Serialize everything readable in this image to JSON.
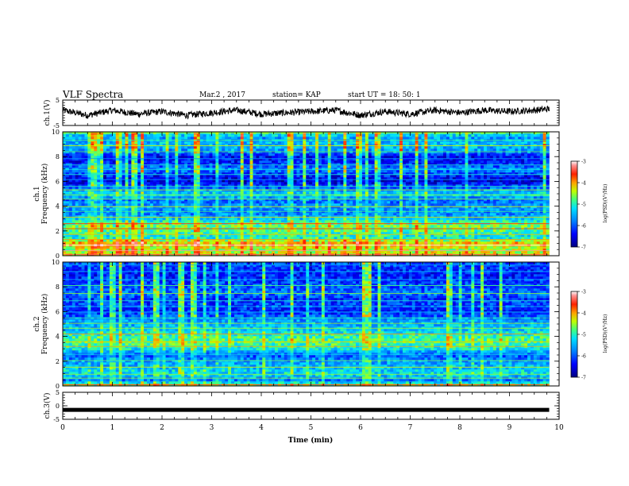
{
  "header": {
    "title": "VLF Spectra",
    "date": "Mar.2  , 2017",
    "station": "station= KAP",
    "start": "start  UT =   18: 50: 1"
  },
  "colors": {
    "colormap": [
      "#000080",
      "#0000ff",
      "#0080ff",
      "#00e0ff",
      "#40ff80",
      "#c0ff00",
      "#ffa000",
      "#ff2000",
      "#ff8080",
      "#ffffff"
    ]
  },
  "chart_data": [
    {
      "type": "line",
      "panel": "ch1-waveform",
      "ylabel": "ch.1(V)",
      "ylim": [
        -5,
        5
      ],
      "yticks": [
        "5",
        "-5"
      ],
      "x": [
        0,
        0.5,
        1,
        1.5,
        2,
        2.5,
        3,
        3.5,
        4,
        4.5,
        5,
        5.5,
        6,
        6.5,
        7,
        7.5,
        8,
        8.5,
        9,
        9.5,
        9.8
      ],
      "values": [
        1,
        -1,
        1,
        -0.5,
        0.5,
        -1,
        0,
        1,
        -0.5,
        0,
        0.5,
        1,
        -1,
        0.5,
        -0.5,
        1,
        0,
        1,
        0.5,
        1,
        1.5
      ]
    },
    {
      "type": "heatmap",
      "panel": "ch1-spectrogram",
      "ylabel": "ch.1\nFrequency (kHz)",
      "ylabel_lines": [
        "ch.1",
        "Frequency  (kHz)"
      ],
      "ylim": [
        0,
        10
      ],
      "yticks": [
        "0",
        "2",
        "4",
        "6",
        "8",
        "10"
      ],
      "colorbar": {
        "label": "log(PSD)(V²/Hz)",
        "range": [
          -7,
          -3
        ],
        "ticks": [
          "-3",
          "-4",
          "-5",
          "-6",
          "-7"
        ]
      },
      "profile_kHz": [
        0,
        0.5,
        1,
        1.5,
        2,
        2.5,
        3,
        3.5,
        4,
        4.5,
        5,
        5.5,
        6,
        6.5,
        7,
        7.5,
        8,
        8.5,
        9,
        9.5,
        10
      ],
      "profile_log_psd": [
        -4.2,
        -4.5,
        -4.0,
        -5.2,
        -4.8,
        -4.6,
        -5.4,
        -5.8,
        -5.6,
        -5.9,
        -5.2,
        -5.9,
        -6.6,
        -6.3,
        -5.7,
        -6.3,
        -6.4,
        -5.6,
        -5.4,
        -5.6,
        -5.0
      ]
    },
    {
      "type": "heatmap",
      "panel": "ch2-spectrogram",
      "ylabel": "ch.2\nFrequency (kHz)",
      "ylabel_lines": [
        "ch.2",
        "Frequency  (kHz)"
      ],
      "ylim": [
        0,
        10
      ],
      "yticks": [
        "0",
        "2",
        "4",
        "6",
        "8",
        "10"
      ],
      "colorbar": {
        "label": "log(PSD)(V²/Hz)",
        "range": [
          -7,
          -3
        ],
        "ticks": [
          "-3",
          "-4",
          "-5",
          "-6",
          "-7"
        ]
      },
      "profile_kHz": [
        0,
        0.5,
        1,
        1.5,
        2,
        2.5,
        3,
        3.5,
        4,
        4.5,
        5,
        5.5,
        6,
        6.5,
        7,
        7.5,
        8,
        8.5,
        9,
        9.5,
        10
      ],
      "profile_log_psd": [
        -4.4,
        -5.8,
        -5.2,
        -5.4,
        -5.6,
        -6.0,
        -5.2,
        -4.8,
        -4.9,
        -5.3,
        -5.5,
        -5.8,
        -6.3,
        -6.1,
        -6.2,
        -5.8,
        -6.0,
        -6.2,
        -6.3,
        -6.2,
        -6.0
      ]
    },
    {
      "type": "line",
      "panel": "ch3-waveform",
      "ylabel": "ch.3(V)",
      "ylim": [
        -5,
        5
      ],
      "yticks": [
        "5",
        "0",
        "-5"
      ],
      "x": [
        0,
        9.8
      ],
      "values": [
        -1.5,
        -1.5
      ],
      "xlabel": "Time  (min)",
      "xlim": [
        0,
        10
      ],
      "xticks": [
        "0",
        "1",
        "2",
        "3",
        "4",
        "5",
        "6",
        "7",
        "8",
        "9",
        "10"
      ]
    }
  ]
}
